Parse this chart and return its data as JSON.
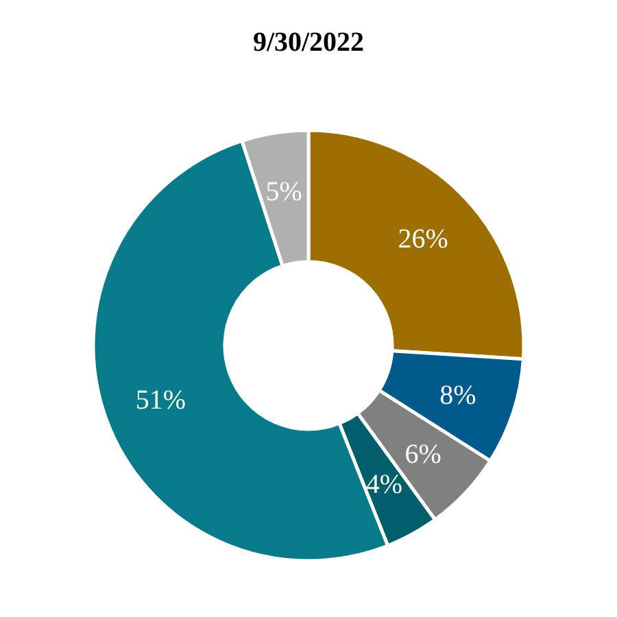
{
  "chart_data": {
    "type": "donut",
    "title": "9/30/2022",
    "categories": [
      null,
      null,
      null,
      null,
      null,
      null
    ],
    "values": [
      26,
      8,
      6,
      4,
      51,
      5
    ],
    "colors": [
      "#9c6f00",
      "#005a8c",
      "#808080",
      "#005f6b",
      "#077b8a",
      "#b0b0ae"
    ],
    "value_labels": [
      "26%",
      "8%",
      "6%",
      "4%",
      "51%",
      "5%"
    ]
  }
}
